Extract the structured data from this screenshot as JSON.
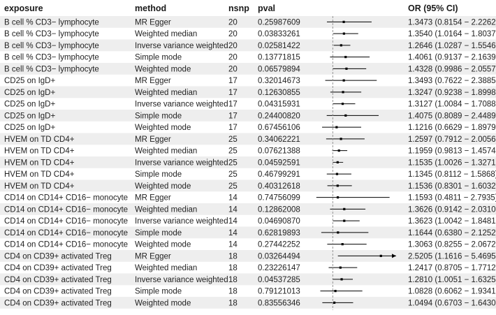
{
  "chart_data": {
    "type": "forest",
    "columns": [
      "exposure",
      "method",
      "nsnp",
      "pval",
      "OR (95% CI)"
    ],
    "xaxis": {
      "ticks": [
        0,
        1,
        2,
        3
      ],
      "xlim": [
        0,
        3
      ],
      "reference_line": 1
    },
    "rows": [
      {
        "exposure": "B cell % CD3− lymphocyte",
        "method": "MR Egger",
        "nsnp": "20",
        "pval": "0.25987609",
        "or_text": "1.3473 (0.8154 − 2.2262)",
        "or": 1.3473,
        "lo": 0.8154,
        "hi": 2.2262
      },
      {
        "exposure": "B cell % CD3− lymphocyte",
        "method": "Weighted median",
        "nsnp": "20",
        "pval": "0.03833261",
        "or_text": "1.3540 (1.0164 − 1.8037)",
        "or": 1.354,
        "lo": 1.0164,
        "hi": 1.8037
      },
      {
        "exposure": "B cell % CD3− lymphocyte",
        "method": "Inverse variance weighted",
        "nsnp": "20",
        "pval": "0.02581422",
        "or_text": "1.2646 (1.0287 − 1.5546)",
        "or": 1.2646,
        "lo": 1.0287,
        "hi": 1.5546
      },
      {
        "exposure": "B cell % CD3− lymphocyte",
        "method": "Simple mode",
        "nsnp": "20",
        "pval": "0.13771815",
        "or_text": "1.4061 (0.9137 − 2.1639)",
        "or": 1.4061,
        "lo": 0.9137,
        "hi": 2.1639
      },
      {
        "exposure": "B cell % CD3− lymphocyte",
        "method": "Weighted mode",
        "nsnp": "20",
        "pval": "0.06579894",
        "or_text": "1.4328 (0.9986 − 2.0557)",
        "or": 1.4328,
        "lo": 0.9986,
        "hi": 2.0557
      },
      {
        "exposure": "CD25 on IgD+",
        "method": "MR Egger",
        "nsnp": "17",
        "pval": "0.32014673",
        "or_text": "1.3493 (0.7622 − 2.3885)",
        "or": 1.3493,
        "lo": 0.7622,
        "hi": 2.3885
      },
      {
        "exposure": "CD25 on IgD+",
        "method": "Weighted median",
        "nsnp": "17",
        "pval": "0.12630855",
        "or_text": "1.3247 (0.9238 − 1.8998)",
        "or": 1.3247,
        "lo": 0.9238,
        "hi": 1.8998
      },
      {
        "exposure": "CD25 on IgD+",
        "method": "Inverse variance weighted",
        "nsnp": "17",
        "pval": "0.04315931",
        "or_text": "1.3127 (1.0084 − 1.7088)",
        "or": 1.3127,
        "lo": 1.0084,
        "hi": 1.7088
      },
      {
        "exposure": "CD25 on IgD+",
        "method": "Simple mode",
        "nsnp": "17",
        "pval": "0.24400820",
        "or_text": "1.4075 (0.8089 − 2.4489)",
        "or": 1.4075,
        "lo": 0.8089,
        "hi": 2.4489
      },
      {
        "exposure": "CD25 on IgD+",
        "method": "Weighted mode",
        "nsnp": "17",
        "pval": "0.67456106",
        "or_text": "1.1216 (0.6629 − 1.8979)",
        "or": 1.1216,
        "lo": 0.6629,
        "hi": 1.8979
      },
      {
        "exposure": "HVEM on TD CD4+",
        "method": "MR Egger",
        "nsnp": "25",
        "pval": "0.34062221",
        "or_text": "1.2597 (0.7912 − 2.0056)",
        "or": 1.2597,
        "lo": 0.7912,
        "hi": 2.0056
      },
      {
        "exposure": "HVEM on TD CD4+",
        "method": "Weighted median",
        "nsnp": "25",
        "pval": "0.07621388",
        "or_text": "1.1959 (0.9813 − 1.4574)",
        "or": 1.1959,
        "lo": 0.9813,
        "hi": 1.4574
      },
      {
        "exposure": "HVEM on TD CD4+",
        "method": "Inverse variance weighted",
        "nsnp": "25",
        "pval": "0.04592591",
        "or_text": "1.1535 (1.0026 − 1.3271)",
        "or": 1.1535,
        "lo": 1.0026,
        "hi": 1.3271
      },
      {
        "exposure": "HVEM on TD CD4+",
        "method": "Simple mode",
        "nsnp": "25",
        "pval": "0.46799291",
        "or_text": "1.1345 (0.8112 − 1.5868)",
        "or": 1.1345,
        "lo": 0.8112,
        "hi": 1.5868
      },
      {
        "exposure": "HVEM on TD CD4+",
        "method": "Weighted mode",
        "nsnp": "25",
        "pval": "0.40312618",
        "or_text": "1.1536 (0.8301 − 1.6032)",
        "or": 1.1536,
        "lo": 0.8301,
        "hi": 1.6032
      },
      {
        "exposure": "CD14 on CD14+ CD16− monocyte",
        "method": "MR Egger",
        "nsnp": "14",
        "pval": "0.74756099",
        "or_text": "1.1593 (0.4811 − 2.7935)",
        "or": 1.1593,
        "lo": 0.4811,
        "hi": 2.7935
      },
      {
        "exposure": "CD14 on CD14+ CD16− monocyte",
        "method": "Weighted median",
        "nsnp": "14",
        "pval": "0.12862008",
        "or_text": "1.3626 (0.9142 − 2.0310)",
        "or": 1.3626,
        "lo": 0.9142,
        "hi": 2.031
      },
      {
        "exposure": "CD14 on CD14+ CD16− monocyte",
        "method": "Inverse variance weighted",
        "nsnp": "14",
        "pval": "0.04690870",
        "or_text": "1.3623 (1.0042 − 1.8481)",
        "or": 1.3623,
        "lo": 1.0042,
        "hi": 1.8481
      },
      {
        "exposure": "CD14 on CD14+ CD16− monocyte",
        "method": "Simple mode",
        "nsnp": "14",
        "pval": "0.62819893",
        "or_text": "1.1644 (0.6380 − 2.1252)",
        "or": 1.1644,
        "lo": 0.638,
        "hi": 2.1252
      },
      {
        "exposure": "CD14 on CD14+ CD16− monocyte",
        "method": "Weighted mode",
        "nsnp": "14",
        "pval": "0.27442252",
        "or_text": "1.3063 (0.8255 − 2.0672)",
        "or": 1.3063,
        "lo": 0.8255,
        "hi": 2.0672
      },
      {
        "exposure": "CD4 on CD39+ activated Treg",
        "method": "MR Egger",
        "nsnp": "18",
        "pval": "0.03264494",
        "or_text": "2.5205 (1.1616 − 5.4695)",
        "or": 2.5205,
        "lo": 1.1616,
        "hi": 5.4695
      },
      {
        "exposure": "CD4 on CD39+ activated Treg",
        "method": "Weighted median",
        "nsnp": "18",
        "pval": "0.23226147",
        "or_text": "1.2417 (0.8705 − 1.7712)",
        "or": 1.2417,
        "lo": 0.8705,
        "hi": 1.7712
      },
      {
        "exposure": "CD4 on CD39+ activated Treg",
        "method": "Inverse variance weighted",
        "nsnp": "18",
        "pval": "0.04537285",
        "or_text": "1.2810 (1.0051 − 1.6325)",
        "or": 1.281,
        "lo": 1.0051,
        "hi": 1.6325
      },
      {
        "exposure": "CD4 on CD39+ activated Treg",
        "method": "Simple mode",
        "nsnp": "18",
        "pval": "0.79121013",
        "or_text": "1.0828 (0.6062 − 1.9341)",
        "or": 1.0828,
        "lo": 0.6062,
        "hi": 1.9341
      },
      {
        "exposure": "CD4 on CD39+ activated Treg",
        "method": "Weighted mode",
        "nsnp": "18",
        "pval": "0.83556346",
        "or_text": "1.0494 (0.6703 − 1.6430)",
        "or": 1.0494,
        "lo": 0.6703,
        "hi": 1.643
      }
    ]
  },
  "style": {
    "band_color": "#eeeeee",
    "mark_color": "#000000",
    "ref_line_color": "#8a8a8a"
  }
}
